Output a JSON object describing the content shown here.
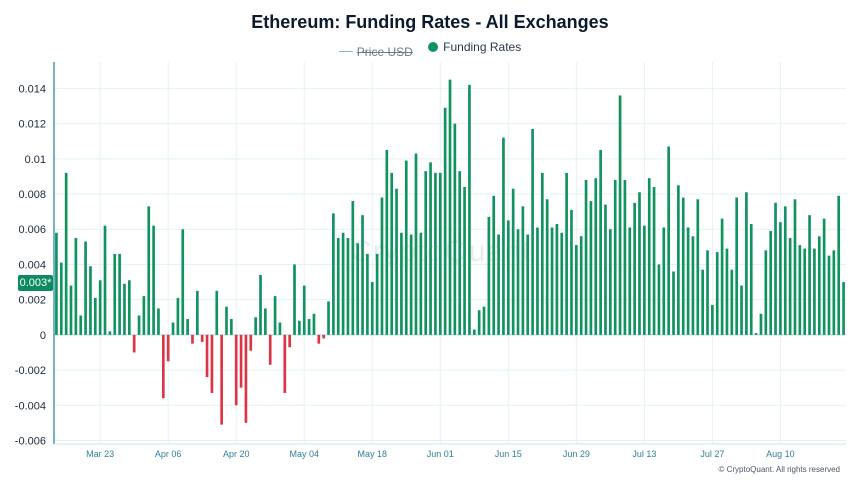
{
  "colors": {
    "positive": "#11935f",
    "negative": "#dc3545",
    "axis": "#1c7fa0",
    "grid": "#e3f2f4",
    "price_line": "#8fb5c2",
    "marker_bg": "#0e8a5f"
  },
  "watermark": "CryptoQuant",
  "credit": "© CryptoQuant. All rights reserved",
  "current_value_label": "0.003*",
  "chart_data": {
    "type": "bar",
    "title": "Ethereum: Funding Rates - All Exchanges",
    "legend": [
      {
        "name": "Price USD",
        "hidden": true
      },
      {
        "name": "Funding Rates",
        "hidden": false
      }
    ],
    "legend_position": "top-center",
    "grid": true,
    "ylim": [
      -0.0062,
      0.0155
    ],
    "yticks": [
      0.014,
      0.012,
      0.01,
      0.008,
      0.006,
      0.004,
      0.002,
      0,
      -0.002,
      -0.004,
      -0.006
    ],
    "ytick_labels": [
      "0.014",
      "0.012",
      "0.01",
      "0.008",
      "0.006",
      "0.004",
      "0.002",
      "0",
      "-0.002",
      "-0.004",
      "-0.006"
    ],
    "xtick_labels": [
      "Mar 23",
      "Apr 06",
      "Apr 20",
      "May 04",
      "May 18",
      "Jun 01",
      "Jun 15",
      "Jun 29",
      "Jul 13",
      "Jul 27",
      "Aug 10"
    ],
    "xtick_index": [
      9,
      23,
      37,
      51,
      65,
      79,
      93,
      107,
      121,
      135,
      149
    ],
    "values": [
      0.0058,
      0.0041,
      0.0092,
      0.0028,
      0.0055,
      0.0011,
      0.0053,
      0.0039,
      0.0021,
      0.0031,
      0.0062,
      0.0002,
      0.0046,
      0.0046,
      0.0029,
      0.0031,
      -0.001,
      0.0011,
      0.0022,
      0.0073,
      0.0062,
      0.0015,
      -0.0036,
      -0.0015,
      0.0007,
      0.0021,
      0.006,
      0.0009,
      -0.0005,
      0.0025,
      -0.0004,
      -0.0024,
      -0.0033,
      0.0025,
      -0.0051,
      0.0016,
      0.0009,
      -0.004,
      -0.003,
      -0.005,
      -0.0009,
      0.001,
      0.0034,
      0.0015,
      -0.0017,
      0.0022,
      0.0007,
      -0.0033,
      -0.0007,
      0.004,
      0.0008,
      0.0028,
      0.0009,
      0.0012,
      -0.0005,
      -0.0002,
      0.0019,
      0.0069,
      0.0055,
      0.0058,
      0.0055,
      0.0076,
      0.0052,
      0.0068,
      0.0046,
      0.003,
      0.0046,
      0.0078,
      0.0105,
      0.0092,
      0.0083,
      0.0058,
      0.0099,
      0.0057,
      0.0103,
      0.0058,
      0.0093,
      0.0098,
      0.0092,
      0.0092,
      0.0129,
      0.0145,
      0.012,
      0.0093,
      0.0084,
      0.0142,
      0.0003,
      0.0014,
      0.0016,
      0.0067,
      0.0079,
      0.0057,
      0.0112,
      0.0065,
      0.0083,
      0.006,
      0.0073,
      0.0057,
      0.0117,
      0.0061,
      0.0092,
      0.0077,
      0.0061,
      0.0063,
      0.0058,
      0.0092,
      0.0071,
      0.0051,
      0.0056,
      0.0088,
      0.0076,
      0.0089,
      0.0105,
      0.0074,
      0.006,
      0.0088,
      0.0136,
      0.0088,
      0.0061,
      0.0075,
      0.0081,
      0.0062,
      0.0089,
      0.0084,
      0.004,
      0.0061,
      0.0107,
      0.0036,
      0.0085,
      0.0078,
      0.0061,
      0.0056,
      0.0077,
      0.0037,
      0.0048,
      0.0017,
      0.0047,
      0.0066,
      0.0049,
      0.0037,
      0.0078,
      0.0028,
      0.0081,
      0.0063,
      0.0001,
      0.0012,
      0.0048,
      0.0059,
      0.0075,
      0.0064,
      0.0073,
      0.0055,
      0.0077,
      0.0051,
      0.0049,
      0.0068,
      0.0049,
      0.0056,
      0.0066,
      0.0045,
      0.0048,
      0.0079,
      0.003
    ]
  }
}
